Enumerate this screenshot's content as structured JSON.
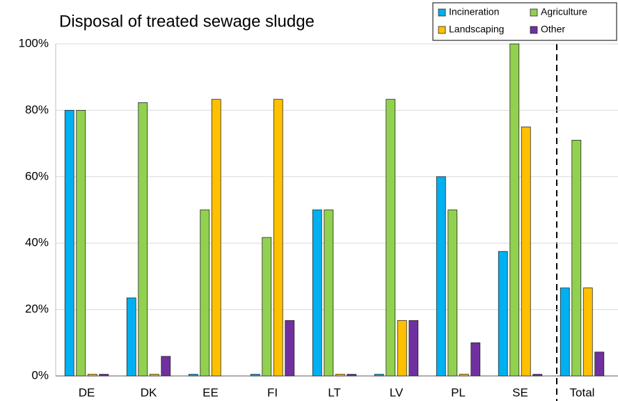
{
  "chart_data": {
    "type": "bar",
    "title": "Disposal of treated sewage sludge",
    "categories": [
      "DE",
      "DK",
      "EE",
      "FI",
      "LT",
      "LV",
      "PL",
      "SE",
      "Total"
    ],
    "series": [
      {
        "name": "Incineration",
        "color": "#00b0f0",
        "values": [
          80,
          23.5,
          0.5,
          0.5,
          50,
          0.5,
          60,
          37.5,
          26.5
        ]
      },
      {
        "name": "Agriculture",
        "color": "#92d050",
        "values": [
          80,
          82.3,
          50,
          41.7,
          50,
          83.3,
          50,
          100,
          71
        ]
      },
      {
        "name": "Landscaping",
        "color": "#ffc000",
        "values": [
          0.5,
          0.5,
          83.3,
          83.3,
          0.5,
          16.7,
          0.5,
          75,
          26.5
        ]
      },
      {
        "name": "Other",
        "color": "#7030a0",
        "values": [
          0.5,
          5.9,
          0,
          16.7,
          0.5,
          16.7,
          10,
          0.5,
          7.2
        ]
      }
    ],
    "ylim": [
      0,
      100
    ],
    "yticks": [
      {
        "value": 0,
        "label": "0%"
      },
      {
        "value": 20,
        "label": "20%"
      },
      {
        "value": 40,
        "label": "40%"
      },
      {
        "value": 60,
        "label": "60%"
      },
      {
        "value": 80,
        "label": "80%"
      },
      {
        "value": 100,
        "label": "100%"
      }
    ],
    "grid": true,
    "legend": "top-right"
  }
}
